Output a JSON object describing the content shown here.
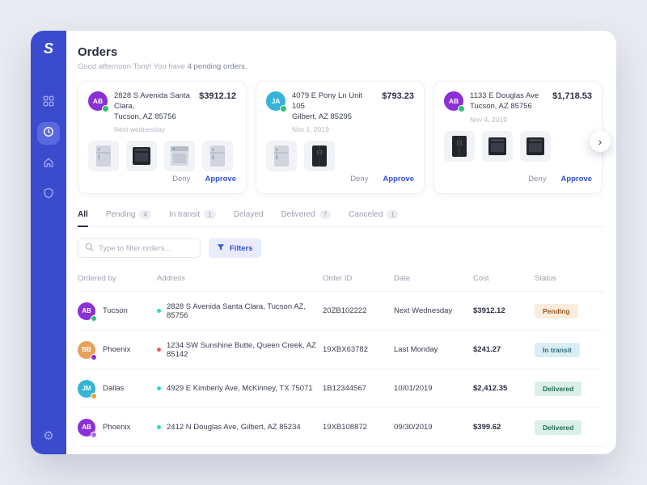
{
  "app": {
    "logo": "S",
    "accent_color": "#3451e0",
    "sidebar_color": "#3b4bce"
  },
  "header": {
    "title": "Orders",
    "greeting": "Good afternoon Tony! You have",
    "greeting_highlight": "4 pending orders."
  },
  "cards": [
    {
      "avatar": {
        "initials": "AB",
        "color": "#8b2fd6",
        "dot": "#2fc272"
      },
      "address_line1": "2828 S Avenida Santa Clara,",
      "address_line2": "Tucson, AZ 85756",
      "date": "Next wednesday",
      "price": "$3912.12",
      "items": [
        "fridge-steel",
        "oven-dark",
        "dishwasher",
        "fridge-steel"
      ],
      "deny_label": "Deny",
      "approve_label": "Approve"
    },
    {
      "avatar": {
        "initials": "JA",
        "color": "#35b4d8",
        "dot": "#2fc272"
      },
      "address_line1": "4079 E Pony Ln Unit 105",
      "address_line2": "Gilbert, AZ 85295",
      "date": "Nov 1, 2019",
      "price": "$793.23",
      "items": [
        "fridge-steel",
        "fridge-dark"
      ],
      "deny_label": "Deny",
      "approve_label": "Approve"
    },
    {
      "avatar": {
        "initials": "AB",
        "color": "#8b2fd6",
        "dot": "#2fc272"
      },
      "address_line1": "1133 E Douglas Ave",
      "address_line2": "Tucson, AZ 85756",
      "date": "Nov 4, 2019",
      "price": "$1,718.53",
      "items": [
        "fridge-dark",
        "oven-dark",
        "oven-dark"
      ],
      "deny_label": "Deny",
      "approve_label": "Approve"
    }
  ],
  "tabs": [
    {
      "label": "All",
      "active": true
    },
    {
      "label": "Pending",
      "count": "4"
    },
    {
      "label": "In transit",
      "count": "1"
    },
    {
      "label": "Delayed"
    },
    {
      "label": "Delivered",
      "count": "7"
    },
    {
      "label": "Canceled",
      "count": "1"
    }
  ],
  "filter_bar": {
    "search_placeholder": "Type to filter orders...",
    "filters_label": "Filters"
  },
  "table": {
    "columns": [
      "Ordered by",
      "Address",
      "Order ID",
      "Date",
      "Cost",
      "Status"
    ],
    "rows": [
      {
        "avatar": {
          "initials": "AB",
          "color": "#8b2fd6",
          "dot": "#2fc272"
        },
        "city": "Tucson",
        "address_dot": "#2bd9c8",
        "address": "2828 S Avenida Santa Clara, Tucson AZ, 85756",
        "order_id": "20ZB102222",
        "date": "Next Wednesday",
        "cost": "$3912.12",
        "status": "Pending",
        "status_bg": "#fcecdc",
        "status_color": "#9a5b22"
      },
      {
        "avatar": {
          "initials": "BB",
          "color": "#e9a05e",
          "dot": "#8b2fd6"
        },
        "city": "Phoenix",
        "address_dot": "#f05a5a",
        "address": "1234 SW Sunshine Butte, Queen Creek, AZ 85142",
        "order_id": "19XBX63782",
        "date": "Last Monday",
        "cost": "$241.27",
        "status": "In transit",
        "status_bg": "#d9eef4",
        "status_color": "#2a6b7c"
      },
      {
        "avatar": {
          "initials": "JM",
          "color": "#35b4d8",
          "dot": "#f0a030"
        },
        "city": "Dallas",
        "address_dot": "#2bd9c8",
        "address": "4929 E Kimberly Ave, McKinney, TX 75071",
        "order_id": "1B12344567",
        "date": "10/01/2019",
        "cost": "$2,412.35",
        "status": "Delivered",
        "status_bg": "#dcefe7",
        "status_color": "#1f6e57"
      },
      {
        "avatar": {
          "initials": "AB",
          "color": "#8b2fd6",
          "dot": "#b06ae8"
        },
        "city": "Phoenix",
        "address_dot": "#2bd9c8",
        "address": "2412 N Douglas Ave, Gilbert, AZ 85234",
        "order_id": "19XB108872",
        "date": "09/30/2019",
        "cost": "$399.62",
        "status": "Delivered",
        "status_bg": "#dcefe7",
        "status_color": "#1f6e57"
      }
    ]
  }
}
